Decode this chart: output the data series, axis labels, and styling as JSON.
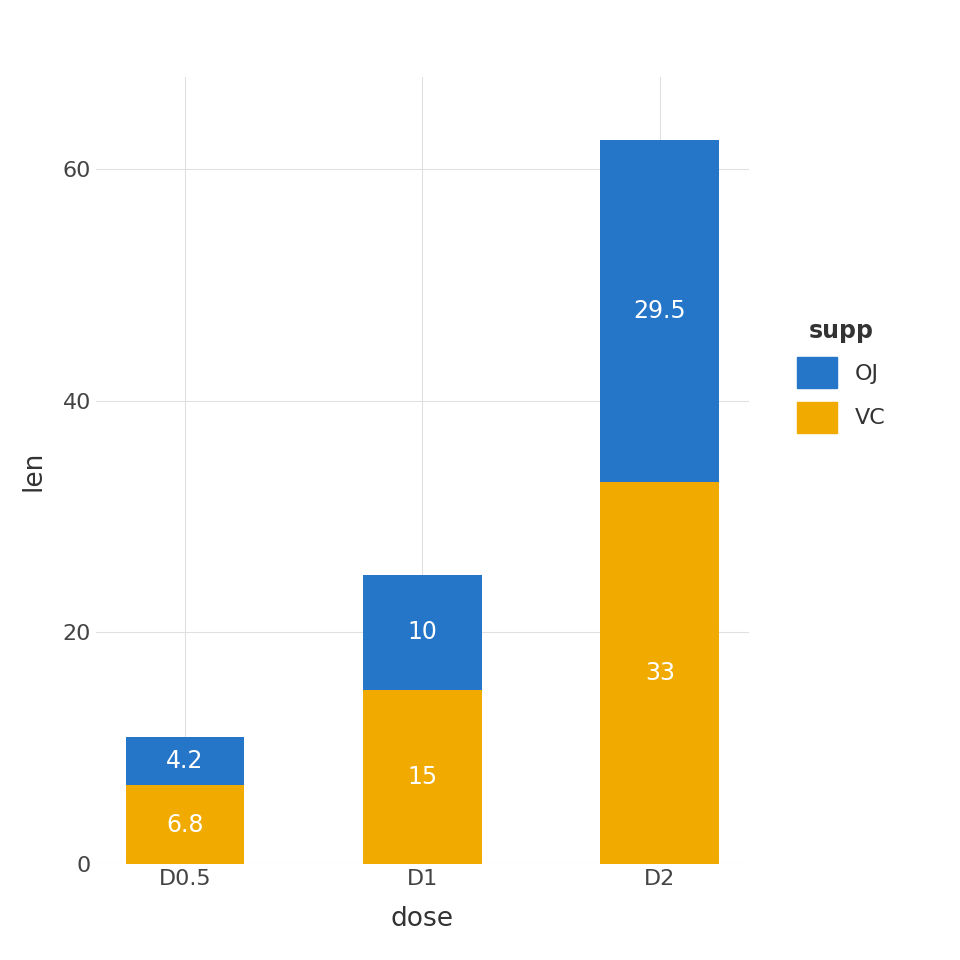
{
  "categories": [
    "D0.5",
    "D1",
    "D2"
  ],
  "vc_values": [
    6.8,
    15,
    33
  ],
  "oj_values": [
    4.2,
    10,
    29.5
  ],
  "vc_color": "#F0AA00",
  "oj_color": "#2575C8",
  "xlabel": "dose",
  "ylabel": "len",
  "ylim": [
    0,
    68
  ],
  "yticks": [
    0,
    20,
    40,
    60
  ],
  "ytick_labels": [
    "0",
    "20",
    "40",
    "60"
  ],
  "legend_title": "supp",
  "label_color": "white",
  "label_fontsize": 17,
  "axis_label_fontsize": 19,
  "tick_fontsize": 16,
  "legend_title_fontsize": 17,
  "legend_label_fontsize": 16,
  "background_color": "#ffffff",
  "grid_color": "#e0e0e0",
  "bar_width": 0.5
}
